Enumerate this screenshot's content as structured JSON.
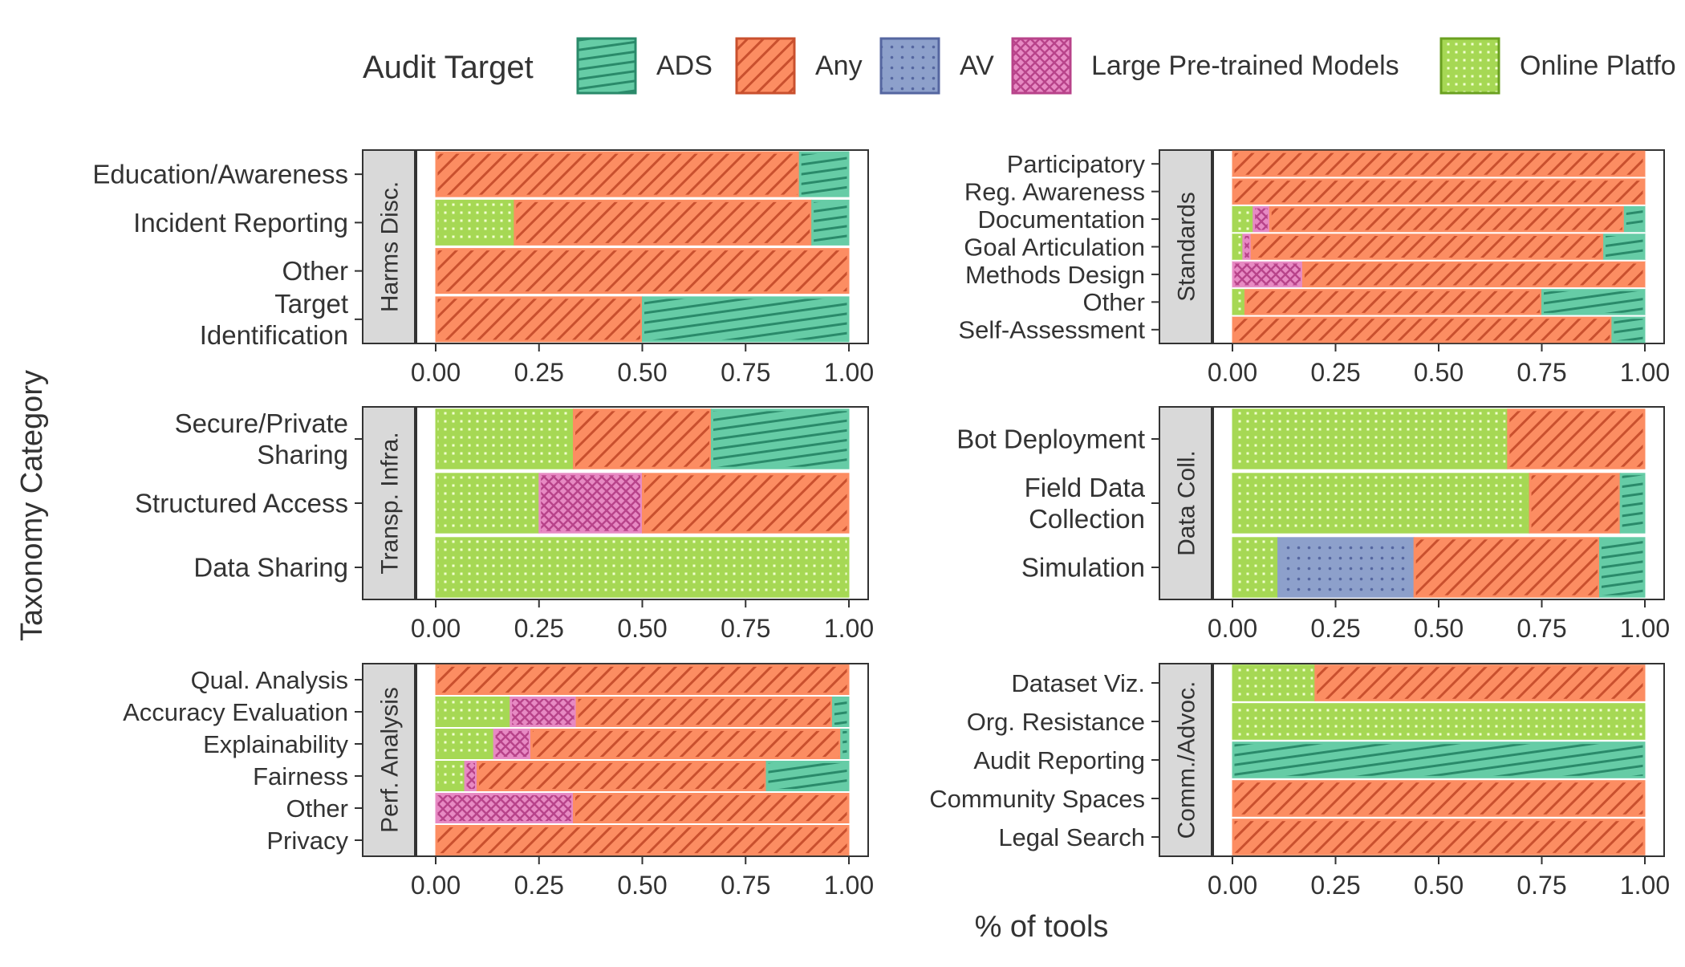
{
  "legend": {
    "title": "Audit Target",
    "items": [
      {
        "key": "ADS",
        "label": "ADS",
        "color": "#66cca6",
        "dark": "#2a8a6a",
        "pattern": "hatch-ads"
      },
      {
        "key": "Any",
        "label": "Any",
        "color": "#fc8d62",
        "dark": "#c9502e",
        "pattern": "hatch-any"
      },
      {
        "key": "AV",
        "label": "AV",
        "color": "#8da0cb",
        "dark": "#5566a0",
        "pattern": "dots-av"
      },
      {
        "key": "LPM",
        "label": "Large Pre-trained Models",
        "color": "#e78ac3",
        "dark": "#b8438a",
        "pattern": "cross-lpm"
      },
      {
        "key": "OP",
        "label": "Online Platfo",
        "color": "#a6d854",
        "dark": "#6aa020",
        "pattern": "grid-op"
      }
    ]
  },
  "axis": {
    "y_title": "Taxonomy Category",
    "x_title": "% of tools",
    "ticks": [
      "0.00",
      "0.25",
      "0.50",
      "0.75",
      "1.00"
    ]
  },
  "chart_data": [
    {
      "type": "bar",
      "facet": "Harms Disc.",
      "xlim": [
        0,
        1
      ],
      "categories": [
        {
          "label": [
            "Education/Awareness"
          ],
          "segments": [
            {
              "key": "Any",
              "value": 0.88
            },
            {
              "key": "ADS",
              "value": 0.12
            }
          ]
        },
        {
          "label": [
            "Incident Reporting"
          ],
          "segments": [
            {
              "key": "OP",
              "value": 0.19
            },
            {
              "key": "Any",
              "value": 0.72
            },
            {
              "key": "ADS",
              "value": 0.09
            }
          ]
        },
        {
          "label": [
            "Other"
          ],
          "segments": [
            {
              "key": "Any",
              "value": 1.0
            }
          ]
        },
        {
          "label": [
            "Target",
            "Identification"
          ],
          "segments": [
            {
              "key": "Any",
              "value": 0.5
            },
            {
              "key": "ADS",
              "value": 0.5
            }
          ]
        }
      ]
    },
    {
      "type": "bar",
      "facet": "Standards",
      "xlim": [
        0,
        1
      ],
      "categories": [
        {
          "label": [
            "Participatory"
          ],
          "segments": [
            {
              "key": "Any",
              "value": 1.0
            }
          ]
        },
        {
          "label": [
            "Reg. Awareness"
          ],
          "segments": [
            {
              "key": "Any",
              "value": 1.0
            }
          ]
        },
        {
          "label": [
            "Documentation"
          ],
          "segments": [
            {
              "key": "OP",
              "value": 0.05
            },
            {
              "key": "LPM",
              "value": 0.04
            },
            {
              "key": "Any",
              "value": 0.86
            },
            {
              "key": "ADS",
              "value": 0.05
            }
          ]
        },
        {
          "label": [
            "Goal Articulation"
          ],
          "segments": [
            {
              "key": "OP",
              "value": 0.025
            },
            {
              "key": "LPM",
              "value": 0.02
            },
            {
              "key": "Any",
              "value": 0.855
            },
            {
              "key": "ADS",
              "value": 0.1
            }
          ]
        },
        {
          "label": [
            "Methods Design"
          ],
          "segments": [
            {
              "key": "LPM",
              "value": 0.17
            },
            {
              "key": "Any",
              "value": 0.83
            }
          ]
        },
        {
          "label": [
            "Other"
          ],
          "segments": [
            {
              "key": "OP",
              "value": 0.03
            },
            {
              "key": "Any",
              "value": 0.72
            },
            {
              "key": "ADS",
              "value": 0.25
            }
          ]
        },
        {
          "label": [
            "Self-Assessment"
          ],
          "segments": [
            {
              "key": "Any",
              "value": 0.92
            },
            {
              "key": "ADS",
              "value": 0.08
            }
          ]
        }
      ]
    },
    {
      "type": "bar",
      "facet": "Transp. Infra.",
      "xlim": [
        0,
        1
      ],
      "categories": [
        {
          "label": [
            "Secure/Private",
            "Sharing"
          ],
          "segments": [
            {
              "key": "OP",
              "value": 0.333
            },
            {
              "key": "Any",
              "value": 0.334
            },
            {
              "key": "ADS",
              "value": 0.333
            }
          ]
        },
        {
          "label": [
            "Structured Access"
          ],
          "segments": [
            {
              "key": "OP",
              "value": 0.25
            },
            {
              "key": "LPM",
              "value": 0.25
            },
            {
              "key": "Any",
              "value": 0.5
            }
          ]
        },
        {
          "label": [
            "Data Sharing"
          ],
          "segments": [
            {
              "key": "OP",
              "value": 1.0
            }
          ]
        }
      ]
    },
    {
      "type": "bar",
      "facet": "Data Coll.",
      "xlim": [
        0,
        1
      ],
      "categories": [
        {
          "label": [
            "Bot Deployment"
          ],
          "segments": [
            {
              "key": "OP",
              "value": 0.667
            },
            {
              "key": "Any",
              "value": 0.333
            }
          ]
        },
        {
          "label": [
            "Field Data",
            "Collection"
          ],
          "segments": [
            {
              "key": "OP",
              "value": 0.72
            },
            {
              "key": "Any",
              "value": 0.22
            },
            {
              "key": "ADS",
              "value": 0.06
            }
          ]
        },
        {
          "label": [
            "Simulation"
          ],
          "segments": [
            {
              "key": "OP",
              "value": 0.11
            },
            {
              "key": "AV",
              "value": 0.33
            },
            {
              "key": "Any",
              "value": 0.45
            },
            {
              "key": "ADS",
              "value": 0.11
            }
          ]
        }
      ]
    },
    {
      "type": "bar",
      "facet": "Perf. Analysis",
      "xlim": [
        0,
        1
      ],
      "categories": [
        {
          "label": [
            "Qual. Analysis"
          ],
          "segments": [
            {
              "key": "Any",
              "value": 1.0
            }
          ]
        },
        {
          "label": [
            "Accuracy Evaluation"
          ],
          "segments": [
            {
              "key": "OP",
              "value": 0.18
            },
            {
              "key": "LPM",
              "value": 0.16
            },
            {
              "key": "Any",
              "value": 0.62
            },
            {
              "key": "ADS",
              "value": 0.04
            }
          ]
        },
        {
          "label": [
            "Explainability"
          ],
          "segments": [
            {
              "key": "OP",
              "value": 0.14
            },
            {
              "key": "LPM",
              "value": 0.09
            },
            {
              "key": "Any",
              "value": 0.75
            },
            {
              "key": "ADS",
              "value": 0.02
            }
          ]
        },
        {
          "label": [
            "Fairness"
          ],
          "segments": [
            {
              "key": "OP",
              "value": 0.07
            },
            {
              "key": "LPM",
              "value": 0.03
            },
            {
              "key": "Any",
              "value": 0.7
            },
            {
              "key": "ADS",
              "value": 0.2
            }
          ]
        },
        {
          "label": [
            "Other"
          ],
          "segments": [
            {
              "key": "LPM",
              "value": 0.333
            },
            {
              "key": "Any",
              "value": 0.667
            }
          ]
        },
        {
          "label": [
            "Privacy"
          ],
          "segments": [
            {
              "key": "Any",
              "value": 1.0
            }
          ]
        }
      ]
    },
    {
      "type": "bar",
      "facet": "Comm./Advoc.",
      "xlim": [
        0,
        1
      ],
      "categories": [
        {
          "label": [
            "Dataset Viz."
          ],
          "segments": [
            {
              "key": "OP",
              "value": 0.2
            },
            {
              "key": "Any",
              "value": 0.8
            }
          ]
        },
        {
          "label": [
            "Org. Resistance"
          ],
          "segments": [
            {
              "key": "OP",
              "value": 1.0
            }
          ]
        },
        {
          "label": [
            "Audit Reporting"
          ],
          "segments": [
            {
              "key": "ADS",
              "value": 1.0
            }
          ]
        },
        {
          "label": [
            "Community Spaces"
          ],
          "segments": [
            {
              "key": "Any",
              "value": 1.0
            }
          ]
        },
        {
          "label": [
            "Legal Search"
          ],
          "segments": [
            {
              "key": "Any",
              "value": 1.0
            }
          ]
        }
      ]
    }
  ]
}
